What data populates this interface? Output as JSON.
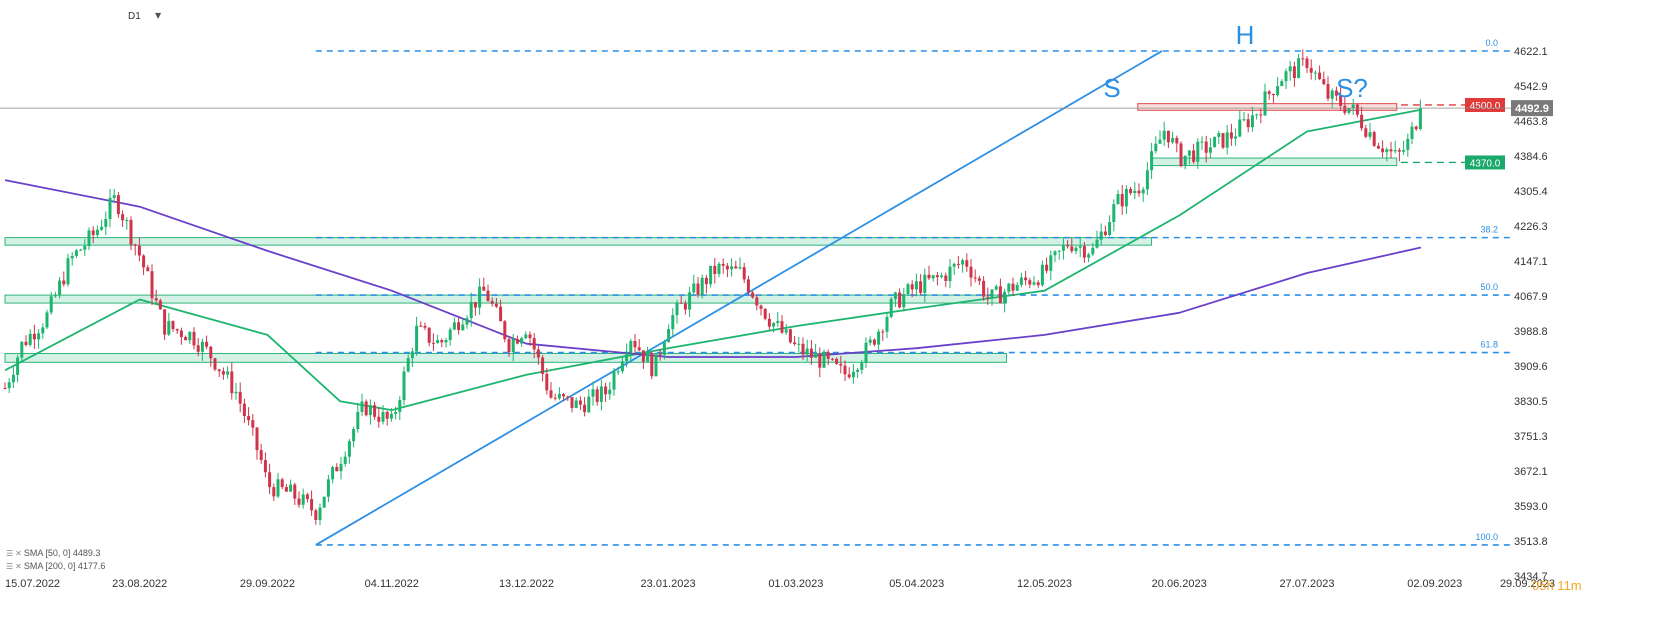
{
  "header": {
    "timeframe": "D1",
    "timer": "05h 11m"
  },
  "legend": [
    {
      "label": "SMA [50, 0] 4489.3",
      "color": "#1db56e"
    },
    {
      "label": "SMA [200, 0] 4177.6",
      "color": "#6a3fc9"
    }
  ],
  "price_lines": [
    {
      "label": "4500.0",
      "value": 4500.0,
      "color": "#e03a3a"
    },
    {
      "label": "4370.0",
      "value": 4370.0,
      "color": "#1aa86b"
    },
    {
      "label": "4492.9",
      "value": 4492.9,
      "color": "#7a7a7a"
    }
  ],
  "pattern_labels": [
    {
      "text": "S",
      "color": "#2c8fe6"
    },
    {
      "text": "H",
      "color": "#2c8fe6"
    },
    {
      "text": "S?",
      "color": "#2c8fe6"
    }
  ],
  "chart_data": {
    "type": "candlestick",
    "instrument_timeframe": "D1",
    "y_axis_ticks": [
      4622.1,
      4542.9,
      4463.8,
      4384.6,
      4305.4,
      4226.3,
      4147.1,
      4067.9,
      3988.8,
      3909.6,
      3830.5,
      3751.3,
      3672.1,
      3593.0,
      3513.8,
      3434.7
    ],
    "x_axis_ticks": [
      "15.07.2022",
      "23.08.2022",
      "29.09.2022",
      "04.11.2022",
      "13.12.2022",
      "23.01.2023",
      "01.03.2023",
      "05.04.2023",
      "12.05.2023",
      "20.06.2023",
      "27.07.2023",
      "02.09.2023",
      "29.09.2023"
    ],
    "ylim": [
      3434.7,
      4622.1
    ],
    "fibonacci": [
      {
        "label": "0.0",
        "value": 4622.1
      },
      {
        "label": "38.2",
        "value": 4200.0
      },
      {
        "label": "50.0",
        "value": 4070.0
      },
      {
        "label": "61.8",
        "value": 3940.0
      },
      {
        "label": "100.0",
        "value": 3505.0
      }
    ],
    "zones": [
      {
        "from": "15.07.2022",
        "to": "12.06.2023",
        "low": 4183,
        "high": 4200,
        "color": "green"
      },
      {
        "from": "15.07.2022",
        "to": "01.05.2023",
        "low": 4052,
        "high": 4070,
        "color": "green"
      },
      {
        "from": "15.07.2022",
        "to": "01.05.2023",
        "low": 3918,
        "high": 3938,
        "color": "green"
      },
      {
        "from": "12.06.2023",
        "to": "22.08.2023",
        "low": 4363,
        "high": 4380,
        "color": "green"
      },
      {
        "from": "08.06.2023",
        "to": "22.08.2023",
        "low": 4488,
        "high": 4503,
        "color": "red"
      }
    ],
    "trendline": [
      {
        "date": "13.10.2022",
        "value": 3505
      },
      {
        "date": "15.06.2023",
        "value": 4622
      }
    ],
    "price_close_approx": [
      [
        "15.07.2022",
        3860
      ],
      [
        "20.07.2022",
        3960
      ],
      [
        "27.07.2022",
        4020
      ],
      [
        "03.08.2022",
        4150
      ],
      [
        "10.08.2022",
        4210
      ],
      [
        "16.08.2022",
        4290
      ],
      [
        "23.08.2022",
        4160
      ],
      [
        "30.08.2022",
        4000
      ],
      [
        "07.09.2022",
        3980
      ],
      [
        "13.09.2022",
        3930
      ],
      [
        "20.09.2022",
        3850
      ],
      [
        "27.09.2022",
        3700
      ],
      [
        "29.09.2022",
        3640
      ],
      [
        "06.10.2022",
        3620
      ],
      [
        "13.10.2022",
        3580
      ],
      [
        "20.10.2022",
        3700
      ],
      [
        "27.10.2022",
        3820
      ],
      [
        "04.11.2022",
        3780
      ],
      [
        "11.11.2022",
        3990
      ],
      [
        "18.11.2022",
        3960
      ],
      [
        "25.11.2022",
        4030
      ],
      [
        "01.12.2022",
        4080
      ],
      [
        "08.12.2022",
        3960
      ],
      [
        "13.12.2022",
        4000
      ],
      [
        "20.12.2022",
        3840
      ],
      [
        "28.12.2022",
        3820
      ],
      [
        "05.01.2023",
        3850
      ],
      [
        "12.01.2023",
        3980
      ],
      [
        "19.01.2023",
        3900
      ],
      [
        "23.01.2023",
        4010
      ],
      [
        "31.01.2023",
        4080
      ],
      [
        "06.02.2023",
        4130
      ],
      [
        "13.02.2023",
        4120
      ],
      [
        "21.02.2023",
        4020
      ],
      [
        "01.03.2023",
        3950
      ],
      [
        "09.03.2023",
        3920
      ],
      [
        "15.03.2023",
        3890
      ],
      [
        "22.03.2023",
        3950
      ],
      [
        "29.03.2023",
        4050
      ],
      [
        "05.04.2023",
        4090
      ],
      [
        "12.04.2023",
        4110
      ],
      [
        "19.04.2023",
        4150
      ],
      [
        "26.04.2023",
        4060
      ],
      [
        "03.05.2023",
        4090
      ],
      [
        "12.05.2023",
        4120
      ],
      [
        "19.05.2023",
        4190
      ],
      [
        "26.05.2023",
        4170
      ],
      [
        "02.06.2023",
        4280
      ],
      [
        "09.06.2023",
        4320
      ],
      [
        "16.06.2023",
        4450
      ],
      [
        "20.06.2023",
        4380
      ],
      [
        "27.06.2023",
        4400
      ],
      [
        "05.07.2023",
        4430
      ],
      [
        "12.07.2023",
        4480
      ],
      [
        "19.07.2023",
        4560
      ],
      [
        "26.07.2023",
        4590
      ],
      [
        "27.07.2023",
        4600
      ],
      [
        "02.08.2023",
        4520
      ],
      [
        "09.08.2023",
        4490
      ],
      [
        "16.08.2023",
        4420
      ],
      [
        "22.08.2023",
        4380
      ],
      [
        "25.08.2023",
        4410
      ],
      [
        "29.08.2023",
        4492.9
      ]
    ],
    "sma50_approx": [
      [
        "15.07.2022",
        3900
      ],
      [
        "23.08.2022",
        4060
      ],
      [
        "29.09.2022",
        3980
      ],
      [
        "20.10.2022",
        3830
      ],
      [
        "04.11.2022",
        3810
      ],
      [
        "13.12.2022",
        3890
      ],
      [
        "23.01.2023",
        3950
      ],
      [
        "01.03.2023",
        4000
      ],
      [
        "05.04.2023",
        4040
      ],
      [
        "12.05.2023",
        4080
      ],
      [
        "20.06.2023",
        4250
      ],
      [
        "27.07.2023",
        4440
      ],
      [
        "29.08.2023",
        4489.3
      ]
    ],
    "sma200_approx": [
      [
        "15.07.2022",
        4330
      ],
      [
        "23.08.2022",
        4270
      ],
      [
        "29.09.2022",
        4170
      ],
      [
        "04.11.2022",
        4080
      ],
      [
        "13.12.2022",
        3960
      ],
      [
        "23.01.2023",
        3930
      ],
      [
        "01.03.2023",
        3930
      ],
      [
        "05.04.2023",
        3950
      ],
      [
        "12.05.2023",
        3980
      ],
      [
        "20.06.2023",
        4030
      ],
      [
        "27.07.2023",
        4120
      ],
      [
        "29.08.2023",
        4177.6
      ]
    ]
  }
}
